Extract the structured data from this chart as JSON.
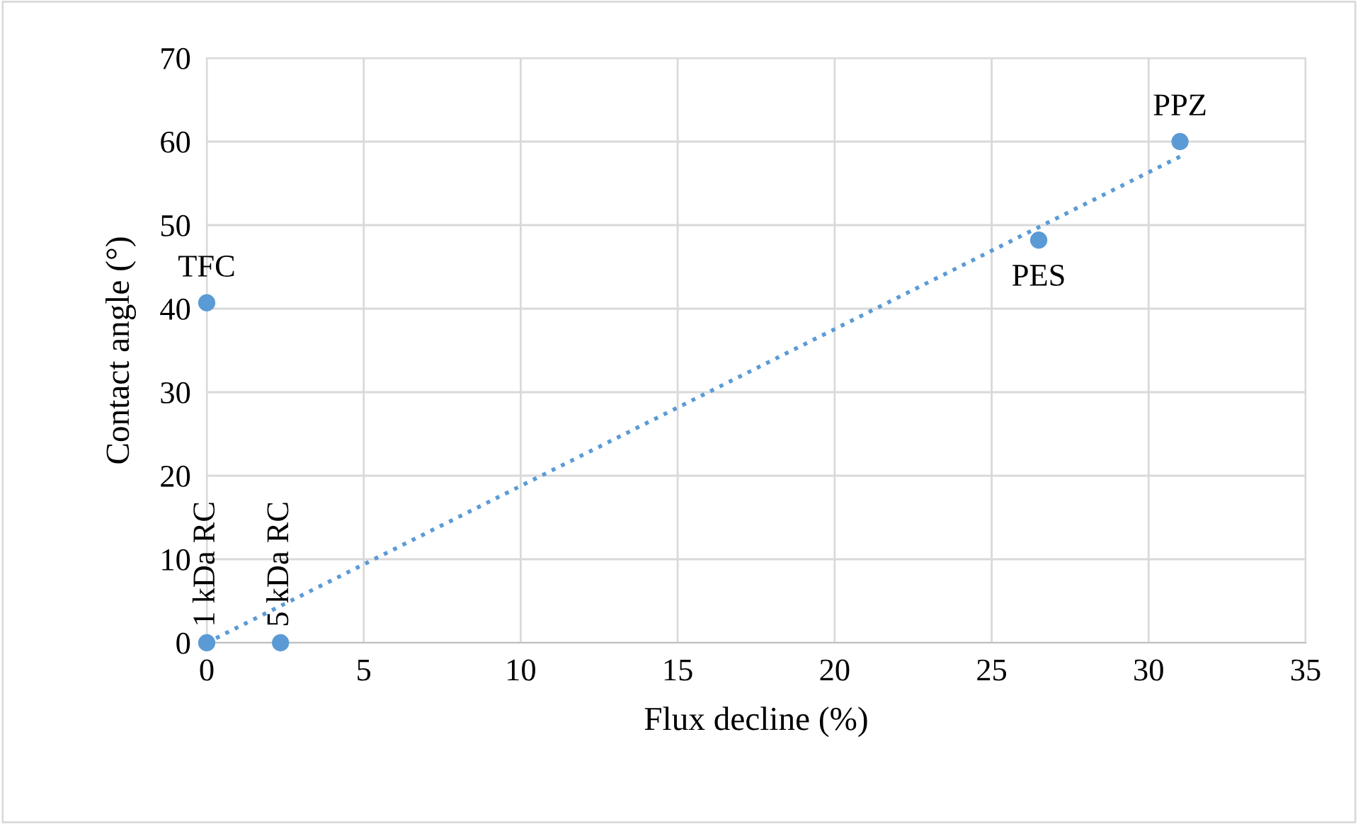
{
  "chart_data": {
    "type": "scatter",
    "xlabel": "Flux decline (%)",
    "ylabel": "Contact angle (°)",
    "x": [
      0,
      0,
      2.35,
      26.5,
      31
    ],
    "series": [
      {
        "color": "#5b9bd5",
        "values": [
          40.7,
          0,
          0,
          48.2,
          60
        ],
        "marker": "circle"
      },
      {
        "type": "line",
        "color": "#5b9bd5",
        "x": [
          0,
          31
        ],
        "values": [
          0,
          58.2
        ],
        "line_style": "dotted",
        "marker": "none"
      }
    ],
    "annotations": [
      {
        "text": "TFC",
        "x": 0,
        "y": 40.7
      },
      {
        "text": "1 kDa RC",
        "x": 0,
        "y": 0
      },
      {
        "text": "5 kDa RC",
        "x": 2.35,
        "y": 0
      },
      {
        "text": "PES",
        "x": 26.5,
        "y": 48.2
      },
      {
        "text": "PPZ",
        "x": 31,
        "y": 60
      }
    ],
    "xlim": [
      0,
      35
    ],
    "xticks": [
      0,
      5,
      10,
      15,
      20,
      25,
      30,
      35
    ],
    "ylim": [
      0,
      70
    ],
    "yticks": [
      0,
      10,
      20,
      30,
      40,
      50,
      60,
      70
    ],
    "grid": true
  }
}
